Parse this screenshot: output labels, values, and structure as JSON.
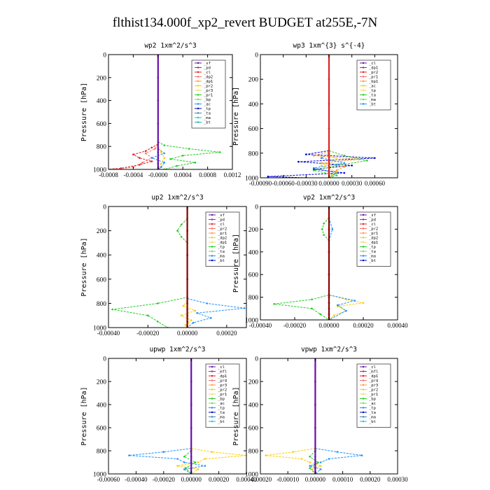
{
  "figure": {
    "title": "flthist134.000f_xp2_revert  BUDGET at255E,-7N"
  },
  "chart_data": [
    {
      "type": "line",
      "title": "wp2  1xm^2/s^3",
      "ylabel": "Pressure [hPa]",
      "xlim": [
        -0.0008,
        0.0012
      ],
      "ylim": [
        1000,
        0
      ],
      "yticks": [
        0,
        200,
        400,
        600,
        800,
        1000
      ],
      "xticks": [
        -0.0008,
        -0.0004,
        0.0,
        0.0004,
        0.0008,
        0.0012
      ],
      "xticklabels": [
        "-0.0008",
        "-0.0004",
        "-0.0000",
        "0.0004",
        "0.0008",
        "0.0012"
      ],
      "legend": [
        "_sf",
        "_pd",
        "_cl",
        "_dp2",
        "_dp1",
        "_pr2",
        "_pr3",
        "_pr1",
        "_bp",
        "_ac",
        "_tp",
        "_ta",
        "_ma",
        "_bt"
      ],
      "series": [
        {
          "name": "_sf",
          "color": "#6a0dad",
          "p": [
            0,
            200,
            400,
            600,
            800,
            850,
            900,
            950,
            1000
          ],
          "x": [
            0,
            0,
            0,
            0,
            0,
            0,
            0,
            0,
            0
          ]
        },
        {
          "name": "_dp2",
          "color": "#e0201b",
          "p": [
            780,
            810,
            840,
            870,
            900,
            930,
            960,
            990,
            1000
          ],
          "x": [
            0,
            -0.0001,
            -0.0002,
            -0.0004,
            -0.0003,
            -0.0001,
            -0.0003,
            -0.0006,
            -0.00085
          ]
        },
        {
          "name": "_dp1",
          "color": "#ff6b6b",
          "p": [
            780,
            820,
            860,
            900,
            940,
            980,
            1000
          ],
          "x": [
            0,
            -5e-05,
            -0.0002,
            -0.0001,
            -0.00025,
            -0.0004,
            -0.0007
          ]
        },
        {
          "name": "_bp",
          "color": "#22cc22",
          "p": [
            760,
            790,
            820,
            850,
            880,
            910,
            940,
            970,
            1000
          ],
          "x": [
            0,
            0.0001,
            0.0005,
            0.001,
            0.0004,
            0.0002,
            0.0006,
            0.0003,
            0.0001
          ]
        },
        {
          "name": "_ac",
          "color": "#1e90ff",
          "p": [
            820,
            860,
            900,
            940,
            980,
            1000
          ],
          "x": [
            0,
            0.0001,
            -0.0001,
            0.0001,
            5e-05,
            0
          ]
        },
        {
          "name": "_pr1",
          "color": "#ffcc00",
          "p": [
            800,
            850,
            900,
            950,
            1000
          ],
          "x": [
            0,
            5e-05,
            0.0001,
            5e-05,
            0
          ]
        }
      ]
    },
    {
      "type": "line",
      "title": "wp3  1xm^{3} s^{-4}",
      "ylabel": "Pressure [hPa]",
      "xlim": [
        -0.0009,
        0.0009
      ],
      "ylim": [
        1000,
        0
      ],
      "yticks": [
        0,
        200,
        400,
        600,
        800,
        1000
      ],
      "xticks": [
        -0.0009,
        -0.0006,
        -0.0003,
        0.0,
        0.0003,
        0.0006
      ],
      "xticklabels": [
        "-0.00090",
        "-0.00060",
        "-0.00030",
        "0.00000",
        "0.00030",
        "0.00060"
      ],
      "legend": [
        "_cl",
        "_dp1",
        "_pr2",
        "_pr1",
        "_bp1",
        "_ac",
        "_tp",
        "_ta",
        "_ma",
        "_bt"
      ],
      "series": [
        {
          "name": "_dp1",
          "color": "#e0201b",
          "p": [
            0,
            200,
            400,
            600,
            800,
            850,
            900,
            950,
            1000
          ],
          "x": [
            0,
            0,
            0,
            0,
            0,
            0,
            0,
            0,
            0
          ]
        },
        {
          "name": "_ta",
          "color": "#0000cc",
          "p": [
            780,
            810,
            840,
            870,
            900,
            930,
            960,
            990,
            1000
          ],
          "x": [
            0,
            -0.0003,
            0.0006,
            -0.0004,
            0.0003,
            -0.0002,
            0.0002,
            -0.0008,
            -0.0003
          ]
        },
        {
          "name": "_pr2",
          "color": "#ff9933",
          "p": [
            790,
            820,
            850,
            880,
            910,
            940,
            1000
          ],
          "x": [
            0,
            -0.0002,
            0.0004,
            -0.0001,
            0.0002,
            0.0001,
            0
          ]
        },
        {
          "name": "_ac",
          "color": "#22cc22",
          "p": [
            780,
            820,
            860,
            900,
            940,
            980,
            1000
          ],
          "x": [
            0,
            0.0002,
            0.0005,
            0.0001,
            -0.0002,
            0.0001,
            0
          ]
        },
        {
          "name": "_tp",
          "color": "#1e90ff",
          "p": [
            800,
            840,
            880,
            920,
            960,
            1000
          ],
          "x": [
            0,
            -0.0001,
            0.0002,
            -0.0002,
            0.0001,
            0
          ]
        },
        {
          "name": "_pr1",
          "color": "#ffcc00",
          "p": [
            800,
            850,
            900,
            950,
            1000
          ],
          "x": [
            0,
            0.0001,
            -0.0001,
            0.0001,
            0
          ]
        }
      ]
    },
    {
      "type": "line",
      "title": "up2  1xm^2/s^3",
      "ylabel": "Pressure [hPa]",
      "xlim": [
        -0.0004,
        0.0003
      ],
      "ylim": [
        1000,
        0
      ],
      "yticks": [
        0,
        200,
        400,
        600,
        800,
        1000
      ],
      "xticks": [
        -0.0004,
        -0.0002,
        0.0,
        0.0002
      ],
      "xticklabels": [
        "-0.00040",
        "-0.00020",
        "0.00000",
        "0.00020"
      ],
      "legend": [
        "_sf",
        "_pd",
        "_cl",
        "_pr2",
        "_pr1",
        "_dp2",
        "_dp1",
        "_tp",
        "_ta",
        "_ma",
        "_bt"
      ],
      "series": [
        {
          "name": "_sf",
          "color": "#8b0000",
          "p": [
            0,
            200,
            400,
            600,
            800,
            850,
            900,
            950,
            1000
          ],
          "x": [
            0,
            0,
            0,
            0,
            0,
            0,
            0,
            0,
            0
          ]
        },
        {
          "name": "_dp2",
          "color": "#22cc22",
          "p": [
            100,
            150,
            200,
            250,
            300,
            750,
            800,
            850,
            900,
            950,
            1000
          ],
          "x": [
            0,
            -3e-05,
            -5e-05,
            -3e-05,
            0,
            0,
            -0.00015,
            -0.00038,
            -0.0002,
            -0.00015,
            -0.0001
          ]
        },
        {
          "name": "_tp",
          "color": "#1e90ff",
          "p": [
            760,
            800,
            840,
            880,
            920,
            960,
            1000
          ],
          "x": [
            0,
            0.0001,
            0.00029,
            5e-05,
            0.00012,
            3e-05,
            0
          ]
        },
        {
          "name": "_pr1",
          "color": "#ffcc00",
          "p": [
            780,
            820,
            860,
            900,
            940,
            980,
            1000
          ],
          "x": [
            0,
            -2e-05,
            4e-05,
            -3e-05,
            2e-05,
            -1e-05,
            0
          ]
        },
        {
          "name": "_cl",
          "color": "#e0201b",
          "p": [
            0,
            200,
            400,
            600,
            800,
            1000
          ],
          "x": [
            0,
            0,
            0,
            0,
            0,
            0
          ]
        }
      ]
    },
    {
      "type": "line",
      "title": "vp2  1xm^2/s^3",
      "ylabel": "Pressure [hPa]",
      "xlim": [
        -0.0004,
        0.0004
      ],
      "ylim": [
        1000,
        0
      ],
      "yticks": [
        0,
        200,
        400,
        600,
        800,
        1000
      ],
      "xticks": [
        -0.0004,
        -0.0002,
        0.0,
        0.0002,
        0.0004
      ],
      "xticklabels": [
        "-0.00040",
        "-0.00020",
        "0.00000",
        "0.00020",
        "0.00040"
      ],
      "legend": [
        "_sf",
        "_pd",
        "_cl",
        "_pr2",
        "_pr1",
        "_dp2",
        "_dp1",
        "_tp",
        "_ta",
        "_ma",
        "_bt"
      ],
      "series": [
        {
          "name": "_sf",
          "color": "#8b0000",
          "p": [
            0,
            200,
            400,
            600,
            800,
            850,
            900,
            950,
            1000
          ],
          "x": [
            0,
            0,
            0,
            0,
            0,
            0,
            0,
            0,
            0
          ]
        },
        {
          "name": "_dp2",
          "color": "#22cc22",
          "p": [
            100,
            150,
            200,
            250,
            300,
            780,
            820,
            860,
            900,
            950,
            1000
          ],
          "x": [
            0,
            -3e-05,
            -4e-05,
            -3e-05,
            0,
            0,
            -0.0001,
            -0.00032,
            -0.0001,
            -5e-05,
            0
          ]
        },
        {
          "name": "_pr1",
          "color": "#ffcc00",
          "p": [
            780,
            820,
            850,
            880,
            920,
            960,
            1000
          ],
          "x": [
            0,
            0.0001,
            0.0002,
            5e-05,
            0.0001,
            3e-05,
            0
          ]
        },
        {
          "name": "_tp",
          "color": "#1e90ff",
          "p": [
            100,
            200,
            300,
            780,
            830,
            870,
            920,
            1000
          ],
          "x": [
            0,
            2e-05,
            0,
            0,
            0.00015,
            5e-05,
            0.0001,
            0
          ]
        },
        {
          "name": "_cl",
          "color": "#e0201b",
          "p": [
            0,
            200,
            400,
            600,
            800,
            1000
          ],
          "x": [
            0,
            0,
            0,
            0,
            0,
            0
          ]
        }
      ]
    },
    {
      "type": "line",
      "title": "upwp  1xm^2/s^3",
      "ylabel": "Pressure [hPa]",
      "xlim": [
        -0.0006,
        0.0004
      ],
      "ylim": [
        1000,
        0
      ],
      "yticks": [
        0,
        200,
        400,
        600,
        800,
        1000
      ],
      "xticks": [
        -0.0006,
        -0.0004,
        -0.0002,
        0.0,
        0.0002,
        0.0004
      ],
      "xticklabels": [
        "-0.00060",
        "-0.00040",
        "-0.00020",
        "0.00000",
        "0.00020",
        "0.00040"
      ],
      "legend": [
        "_cl",
        "_mfl",
        "_dp1",
        "_pr4",
        "_pr3",
        "_pr2",
        "_pr1",
        "_bp",
        "_ac",
        "_tp",
        "_ta",
        "_ma",
        "_bt"
      ],
      "series": [
        {
          "name": "_cl",
          "color": "#6a0dad",
          "p": [
            0,
            200,
            400,
            600,
            800,
            850,
            900,
            950,
            1000
          ],
          "x": [
            0,
            0,
            0,
            0,
            0,
            0,
            0,
            0,
            0
          ]
        },
        {
          "name": "_tp",
          "color": "#1e90ff",
          "p": [
            780,
            810,
            840,
            870,
            900,
            930,
            960,
            1000
          ],
          "x": [
            0,
            -0.0002,
            -0.00045,
            -0.0001,
            -5e-05,
            0.0001,
            -5e-05,
            0
          ]
        },
        {
          "name": "_pr1",
          "color": "#ffcc00",
          "p": [
            780,
            810,
            840,
            870,
            900,
            930,
            960,
            1000
          ],
          "x": [
            0,
            0.00015,
            0.0004,
            0.0001,
            5e-05,
            -0.0001,
            5e-05,
            0
          ]
        },
        {
          "name": "_ac",
          "color": "#22cc22",
          "p": [
            800,
            850,
            900,
            950,
            1000
          ],
          "x": [
            0,
            -5e-05,
            3e-05,
            -4e-05,
            0
          ]
        },
        {
          "name": "_dp1",
          "color": "#e0201b",
          "p": [
            0,
            200,
            400,
            600,
            800,
            1000
          ],
          "x": [
            0,
            0,
            0,
            0,
            0,
            0
          ]
        }
      ]
    },
    {
      "type": "line",
      "title": "vpwp  1xm^2/s^3",
      "ylabel": "Pressure [hPa]",
      "xlim": [
        -0.0002,
        0.0003
      ],
      "ylim": [
        1000,
        0
      ],
      "yticks": [
        0,
        200,
        400,
        600,
        800,
        1000
      ],
      "xticks": [
        -0.0002,
        -0.0001,
        0.0,
        0.0001,
        0.0002,
        0.0003
      ],
      "xticklabels": [
        "-0.00020",
        "-0.00010",
        "0.00000",
        "0.00010",
        "0.00020",
        "0.00030"
      ],
      "legend": [
        "_cl",
        "_mfl",
        "_dp1",
        "_pr4",
        "_pr3",
        "_pr2",
        "_pr1",
        "_bp",
        "_ac",
        "_tp",
        "_ta",
        "_ma",
        "_bt"
      ],
      "series": [
        {
          "name": "_cl",
          "color": "#6a0dad",
          "p": [
            0,
            200,
            400,
            600,
            800,
            850,
            900,
            950,
            1000
          ],
          "x": [
            0,
            0,
            0,
            0,
            0,
            0,
            0,
            0,
            0
          ]
        },
        {
          "name": "_tp",
          "color": "#1e90ff",
          "p": [
            780,
            810,
            840,
            870,
            900,
            930,
            960,
            1000
          ],
          "x": [
            0,
            8e-05,
            0.00017,
            5e-05,
            2e-05,
            -2e-05,
            2e-05,
            0
          ]
        },
        {
          "name": "_pr1",
          "color": "#ffcc00",
          "p": [
            780,
            810,
            840,
            870,
            900,
            930,
            960,
            1000
          ],
          "x": [
            0,
            -8e-05,
            -0.00018,
            -5e-05,
            -2e-05,
            2e-05,
            -1e-05,
            0
          ]
        },
        {
          "name": "_ac",
          "color": "#22cc22",
          "p": [
            800,
            850,
            900,
            950,
            1000
          ],
          "x": [
            0,
            -2e-05,
            1e-05,
            -2e-05,
            0
          ]
        },
        {
          "name": "_dp1",
          "color": "#e0201b",
          "p": [
            0,
            200,
            400,
            600,
            800,
            1000
          ],
          "x": [
            0,
            0,
            0,
            0,
            0,
            0
          ]
        }
      ]
    }
  ]
}
